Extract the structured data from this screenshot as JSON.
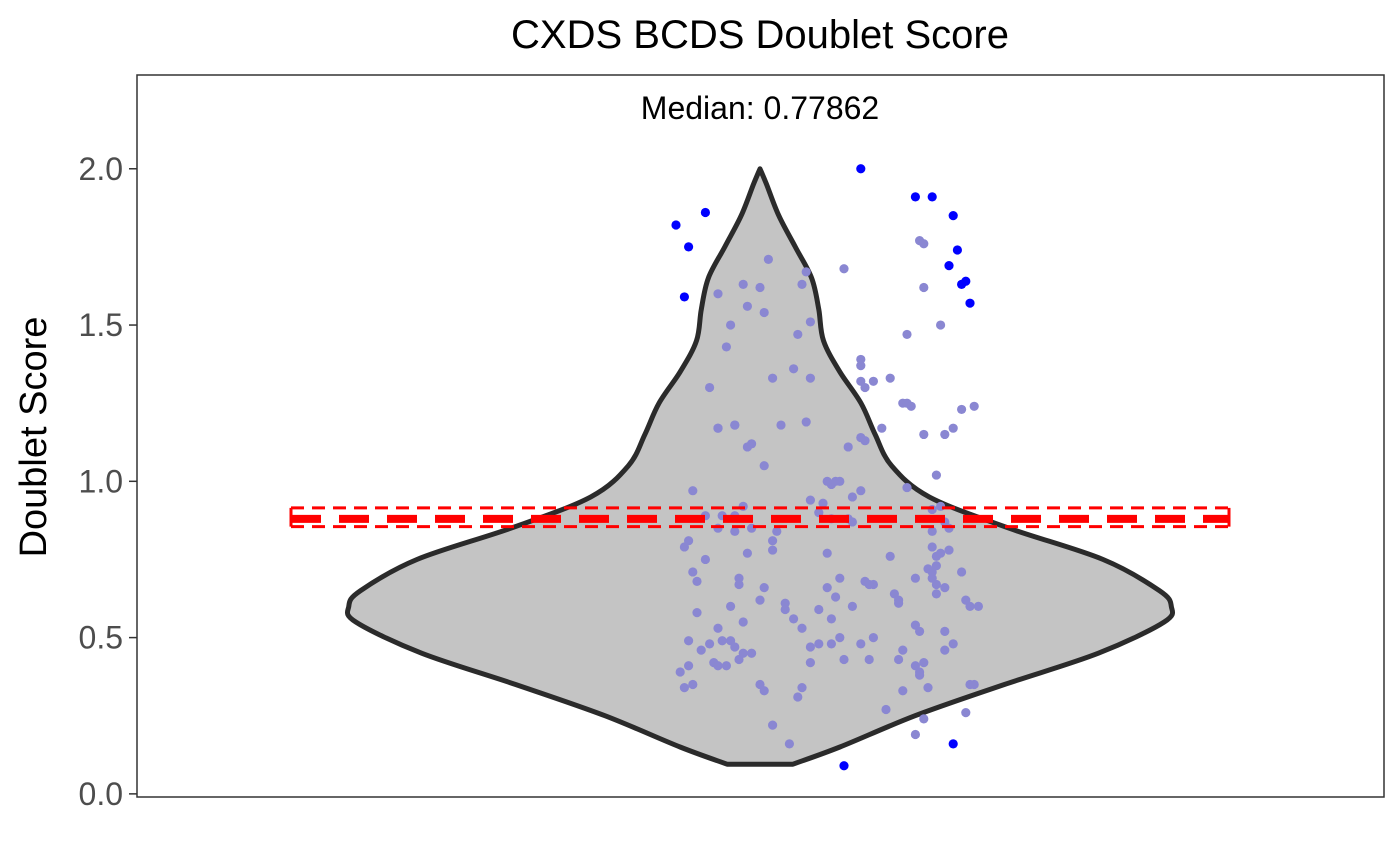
{
  "chart_data": {
    "type": "violin",
    "title": "CXDS BCDS Doublet Score",
    "ylabel": "Doublet Score",
    "xlabel": "",
    "ylim": [
      -0.01,
      2.3
    ],
    "yticks": [
      0.0,
      0.5,
      1.0,
      1.5,
      2.0
    ],
    "ytick_labels": [
      "0.0",
      "0.5",
      "1.0",
      "1.5",
      "2.0"
    ],
    "grid": false,
    "annotation": "Median: 0.77862",
    "colors": {
      "violin_fill": "#c4c4c4",
      "violin_outline": "#2b2b2b",
      "point": "#8a87d2",
      "outlier": "#0000ff",
      "summary_line": "#ff0000"
    },
    "summary": {
      "center": 0.88,
      "upper": 0.915,
      "lower": 0.855
    },
    "violin_profile": [
      [
        0.095,
        0.07
      ],
      [
        0.15,
        0.17
      ],
      [
        0.25,
        0.33
      ],
      [
        0.35,
        0.52
      ],
      [
        0.45,
        0.72
      ],
      [
        0.55,
        0.86
      ],
      [
        0.6,
        0.875
      ],
      [
        0.65,
        0.85
      ],
      [
        0.75,
        0.73
      ],
      [
        0.85,
        0.53
      ],
      [
        0.95,
        0.36
      ],
      [
        1.05,
        0.28
      ],
      [
        1.15,
        0.245
      ],
      [
        1.25,
        0.215
      ],
      [
        1.35,
        0.17
      ],
      [
        1.45,
        0.135
      ],
      [
        1.55,
        0.125
      ],
      [
        1.65,
        0.11
      ],
      [
        1.75,
        0.075
      ],
      [
        1.85,
        0.04
      ],
      [
        1.95,
        0.014
      ],
      [
        2.0,
        0.0
      ]
    ],
    "points": [
      [
        -0.19,
        0.39
      ],
      [
        -0.18,
        0.34
      ],
      [
        -0.17,
        0.41
      ],
      [
        -0.16,
        0.35
      ],
      [
        -0.17,
        0.49
      ],
      [
        -0.14,
        0.46
      ],
      [
        -0.15,
        0.58
      ],
      [
        -0.16,
        0.71
      ],
      [
        -0.15,
        0.68
      ],
      [
        -0.13,
        0.75
      ],
      [
        -0.18,
        0.79
      ],
      [
        -0.17,
        0.81
      ],
      [
        -0.16,
        0.97
      ],
      [
        -0.13,
        0.89
      ],
      [
        -0.12,
        0.48
      ],
      [
        -0.11,
        0.42
      ],
      [
        -0.1,
        0.53
      ],
      [
        -0.09,
        0.49
      ],
      [
        -0.1,
        0.41
      ],
      [
        -0.08,
        0.41
      ],
      [
        -0.07,
        0.49
      ],
      [
        -0.06,
        0.47
      ],
      [
        -0.05,
        0.43
      ],
      [
        -0.04,
        0.45
      ],
      [
        -0.07,
        0.6
      ],
      [
        -0.05,
        0.67
      ],
      [
        -0.04,
        0.55
      ],
      [
        -0.05,
        0.69
      ],
      [
        -0.03,
        0.77
      ],
      [
        -0.02,
        0.85
      ],
      [
        -0.06,
        0.84
      ],
      [
        -0.04,
        0.92
      ],
      [
        -0.06,
        0.89
      ],
      [
        -0.09,
        0.89
      ],
      [
        -0.1,
        0.85
      ],
      [
        -0.12,
        1.3
      ],
      [
        -0.1,
        1.17
      ],
      [
        -0.1,
        1.17
      ],
      [
        -0.06,
        1.18
      ],
      [
        -0.06,
        1.18
      ],
      [
        -0.03,
        1.11
      ],
      [
        -0.02,
        1.12
      ],
      [
        -0.08,
        1.43
      ],
      [
        -0.1,
        1.6
      ],
      [
        -0.07,
        1.5
      ],
      [
        -0.04,
        1.63
      ],
      [
        -0.03,
        1.56
      ],
      [
        0.0,
        1.62
      ],
      [
        0.01,
        1.54
      ],
      [
        0.02,
        1.71
      ],
      [
        0.01,
        1.05
      ],
      [
        0.03,
        1.33
      ],
      [
        -0.02,
        0.45
      ],
      [
        0.0,
        0.35
      ],
      [
        0.01,
        0.33
      ],
      [
        0.0,
        0.62
      ],
      [
        0.01,
        0.66
      ],
      [
        0.03,
        0.78
      ],
      [
        0.03,
        0.81
      ],
      [
        0.04,
        0.84
      ],
      [
        0.06,
        0.59
      ],
      [
        0.06,
        0.61
      ],
      [
        0.08,
        0.56
      ],
      [
        0.09,
        0.31
      ],
      [
        0.1,
        0.34
      ],
      [
        0.03,
        0.22
      ],
      [
        0.07,
        0.16
      ],
      [
        0.1,
        0.53
      ],
      [
        0.12,
        0.47
      ],
      [
        0.12,
        0.42
      ],
      [
        0.14,
        0.48
      ],
      [
        0.14,
        0.59
      ],
      [
        0.16,
        0.66
      ],
      [
        0.17,
        0.56
      ],
      [
        0.18,
        0.63
      ],
      [
        0.19,
        0.69
      ],
      [
        0.16,
        0.77
      ],
      [
        0.17,
        0.88
      ],
      [
        0.21,
        0.88
      ],
      [
        0.22,
        0.87
      ],
      [
        0.14,
        0.9
      ],
      [
        0.15,
        0.93
      ],
      [
        0.17,
        0.99
      ],
      [
        0.18,
        1.0
      ],
      [
        0.16,
        1.0
      ],
      [
        0.19,
        1.0
      ],
      [
        0.12,
        0.94
      ],
      [
        0.05,
        1.18
      ],
      [
        0.11,
        1.19
      ],
      [
        0.08,
        1.36
      ],
      [
        0.09,
        1.47
      ],
      [
        0.12,
        1.51
      ],
      [
        0.1,
        1.63
      ],
      [
        0.11,
        1.67
      ],
      [
        0.12,
        1.33
      ],
      [
        0.17,
        0.48
      ],
      [
        0.19,
        0.5
      ],
      [
        0.2,
        1.68
      ],
      [
        0.21,
        1.11
      ],
      [
        0.24,
        1.39
      ],
      [
        0.24,
        1.32
      ],
      [
        0.24,
        1.37
      ],
      [
        0.25,
        1.3
      ],
      [
        0.27,
        1.32
      ],
      [
        0.29,
        1.17
      ],
      [
        0.24,
        0.97
      ],
      [
        0.25,
        1.13
      ],
      [
        0.24,
        1.14
      ],
      [
        0.22,
        0.95
      ],
      [
        0.25,
        0.68
      ],
      [
        0.27,
        0.67
      ],
      [
        0.26,
        0.67
      ],
      [
        0.22,
        0.6
      ],
      [
        0.24,
        0.48
      ],
      [
        0.27,
        0.5
      ],
      [
        0.26,
        0.43
      ],
      [
        0.2,
        0.43
      ],
      [
        0.3,
        0.27
      ],
      [
        0.31,
        1.33
      ],
      [
        0.31,
        0.76
      ],
      [
        0.32,
        0.64
      ],
      [
        0.33,
        0.62
      ],
      [
        0.33,
        0.61
      ],
      [
        0.34,
        0.46
      ],
      [
        0.33,
        0.43
      ],
      [
        0.34,
        0.33
      ],
      [
        0.34,
        1.25
      ],
      [
        0.35,
        1.25
      ],
      [
        0.36,
        1.24
      ],
      [
        0.35,
        1.47
      ],
      [
        0.35,
        0.98
      ],
      [
        0.37,
        0.69
      ],
      [
        0.37,
        0.54
      ],
      [
        0.38,
        0.52
      ],
      [
        0.37,
        0.41
      ],
      [
        0.38,
        0.39
      ],
      [
        0.37,
        0.19
      ],
      [
        0.39,
        0.24
      ],
      [
        0.38,
        0.38
      ],
      [
        0.4,
        0.34
      ],
      [
        0.39,
        0.42
      ],
      [
        0.39,
        1.15
      ],
      [
        0.4,
        0.72
      ],
      [
        0.41,
        0.69
      ],
      [
        0.41,
        0.71
      ],
      [
        0.42,
        0.73
      ],
      [
        0.42,
        0.76
      ],
      [
        0.43,
        0.77
      ],
      [
        0.41,
        0.79
      ],
      [
        0.41,
        0.84
      ],
      [
        0.41,
        0.91
      ],
      [
        0.42,
        1.02
      ],
      [
        0.44,
        1.15
      ],
      [
        0.43,
        0.92
      ],
      [
        0.44,
        0.87
      ],
      [
        0.45,
        0.85
      ],
      [
        0.45,
        0.78
      ],
      [
        0.44,
        0.66
      ],
      [
        0.42,
        0.64
      ],
      [
        0.42,
        0.67
      ],
      [
        0.44,
        0.52
      ],
      [
        0.46,
        0.48
      ],
      [
        0.44,
        0.46
      ],
      [
        0.46,
        1.17
      ],
      [
        0.49,
        0.26
      ],
      [
        0.5,
        0.35
      ],
      [
        0.51,
        0.35
      ],
      [
        0.5,
        0.6
      ],
      [
        0.52,
        0.6
      ],
      [
        0.49,
        0.62
      ],
      [
        0.48,
        0.71
      ],
      [
        0.48,
        1.23
      ],
      [
        0.51,
        1.24
      ],
      [
        0.39,
        1.62
      ],
      [
        0.38,
        1.77
      ],
      [
        0.39,
        1.76
      ],
      [
        0.43,
        1.5
      ]
    ],
    "outliers": [
      [
        -0.2,
        1.82
      ],
      [
        -0.17,
        1.75
      ],
      [
        -0.13,
        1.86
      ],
      [
        -0.18,
        1.59
      ],
      [
        0.24,
        2.0
      ],
      [
        0.37,
        1.91
      ],
      [
        0.41,
        1.91
      ],
      [
        0.45,
        1.69
      ],
      [
        0.46,
        1.85
      ],
      [
        0.47,
        1.74
      ],
      [
        0.48,
        1.63
      ],
      [
        0.49,
        1.64
      ],
      [
        0.5,
        1.57
      ],
      [
        0.46,
        0.16
      ],
      [
        0.2,
        0.09
      ]
    ]
  }
}
